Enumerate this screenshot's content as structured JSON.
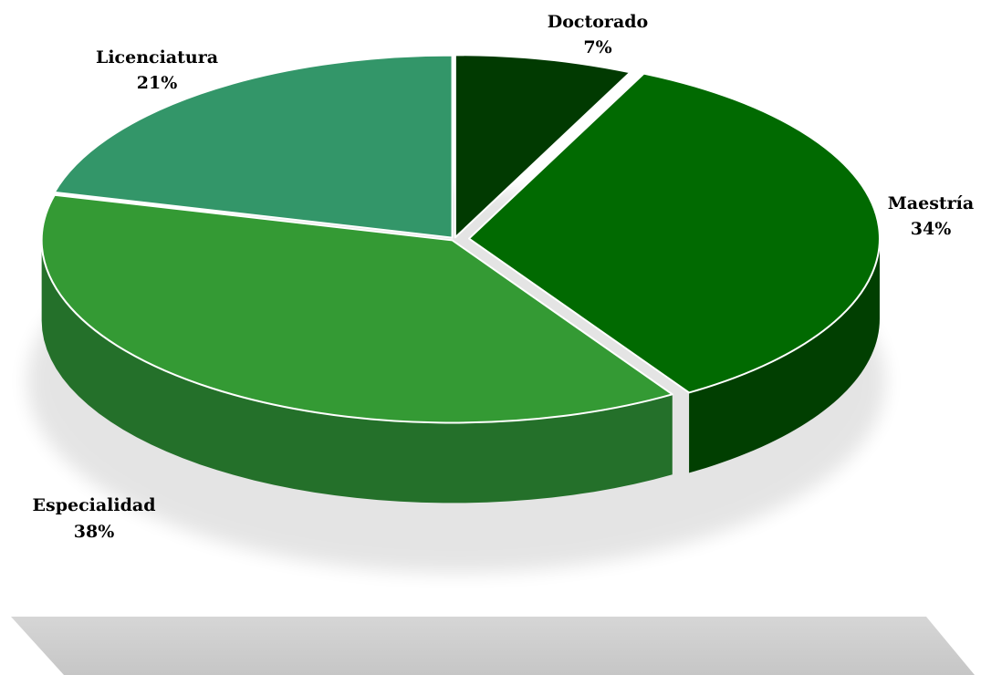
{
  "chart_data": {
    "type": "pie",
    "categories": [
      "Doctorado",
      "Maestría",
      "Especialidad",
      "Licenciatura"
    ],
    "values": [
      7,
      34,
      38,
      21
    ],
    "labels": [
      "7%",
      "34%",
      "38%",
      "21%"
    ],
    "colors": [
      "#013a01",
      "#016a01",
      "#349a34",
      "#339669"
    ],
    "side_colors": [
      "#012401",
      "#013f01",
      "#24702a",
      "#22644a"
    ],
    "exploded": [
      "Maestría"
    ],
    "style": "3d"
  }
}
